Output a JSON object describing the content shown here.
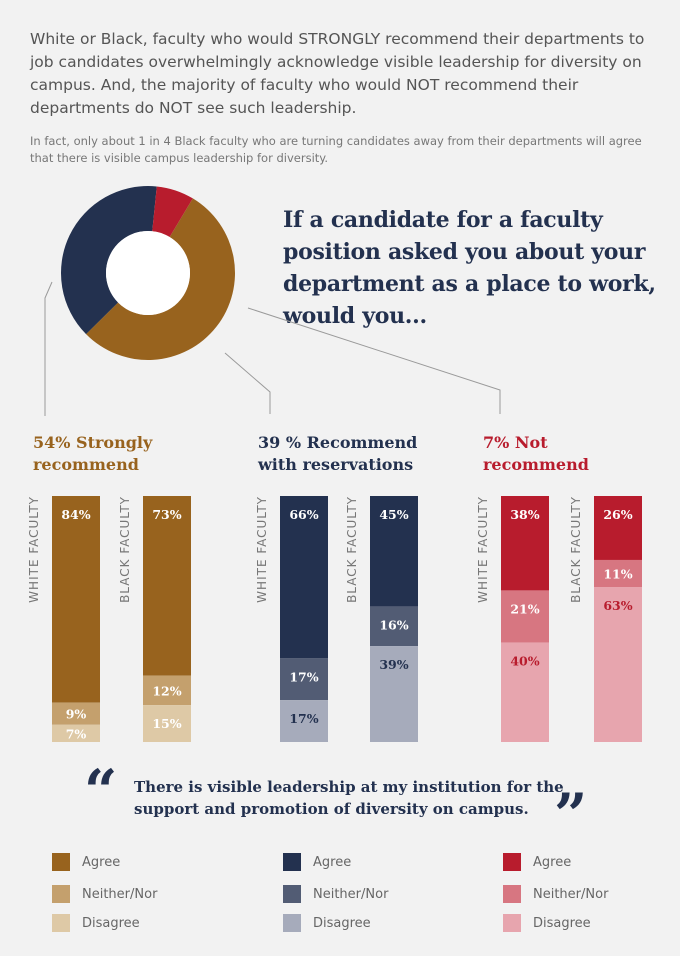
{
  "intro": "White or Black, faculty who would STRONGLY recommend their departments to job candidates overwhelmingly acknowledge visible leadership for diversity on campus. And, the majority of faculty who would NOT recommend their departments do NOT see such leadership.",
  "subtext": "In fact, only about 1 in 4 Black faculty who are turning candidates away from their departments will agree that there is visible campus leadership for diversity.",
  "question": "If a candidate for a faculty position asked you about your department as a place to work, would you...",
  "quote": "There is visible leadership at my institution for the support and promotion of diversity on campus.",
  "quote_open": "“",
  "quote_close": "”",
  "legend": [
    {
      "label": "Agree",
      "color": "#98631e"
    },
    {
      "label": "Neither/Nor",
      "color": "#c4a06d"
    },
    {
      "label": "Disagree",
      "color": "#dec9a6"
    },
    {
      "label": "Agree",
      "color": "#23314f"
    },
    {
      "label": "Neither/Nor",
      "color": "#525c74"
    },
    {
      "label": "Disagree",
      "color": "#a6abbb"
    },
    {
      "label": "Agree",
      "color": "#b81c2d"
    },
    {
      "label": "Neither/Nor",
      "color": "#d77681"
    },
    {
      "label": "Disagree",
      "color": "#e7a5ae"
    }
  ],
  "chart_data": [
    {
      "type": "pie",
      "labels": [
        "Strongly recommend",
        "Recommend with reservations",
        "Not recommend"
      ],
      "values": [
        54,
        39,
        7
      ],
      "colors": [
        "#98631e",
        "#23314f",
        "#b81c2d"
      ]
    },
    {
      "type": "bar",
      "stacked": true,
      "groups": [
        {
          "title": [
            "54% Strongly",
            "recommend"
          ],
          "color": "#98631e"
        },
        {
          "title": [
            "39 % Recommend",
            "with reservations"
          ],
          "color": "#23314f"
        },
        {
          "title": [
            "7% Not",
            "recommend"
          ],
          "color": "#b81c2d"
        }
      ],
      "categories": [
        "WHITE FACULTY",
        "BLACK FACULTY"
      ],
      "series_labels": [
        "Agree",
        "Neither/Nor",
        "Disagree"
      ],
      "bars": [
        {
          "group": 0,
          "category": "WHITE FACULTY",
          "values": [
            84,
            9,
            7
          ],
          "labels": [
            "84%",
            "9%",
            "7%"
          ],
          "colors": [
            "#98631e",
            "#c4a06d",
            "#dec9a6"
          ]
        },
        {
          "group": 0,
          "category": "BLACK FACULTY",
          "values": [
            73,
            12,
            15
          ],
          "labels": [
            "73%",
            "12%",
            "15%"
          ],
          "colors": [
            "#98631e",
            "#c4a06d",
            "#dec9a6"
          ]
        },
        {
          "group": 1,
          "category": "WHITE FACULTY",
          "values": [
            66,
            17,
            17
          ],
          "labels": [
            "66%",
            "17%",
            "17%"
          ],
          "colors": [
            "#23314f",
            "#525c74",
            "#a6abbb"
          ]
        },
        {
          "group": 1,
          "category": "BLACK FACULTY",
          "values": [
            45,
            16,
            39
          ],
          "labels": [
            "45%",
            "16%",
            "39%"
          ],
          "colors": [
            "#23314f",
            "#525c74",
            "#a6abbb"
          ]
        },
        {
          "group": 2,
          "category": "WHITE FACULTY",
          "values": [
            38,
            21,
            40
          ],
          "labels": [
            "38%",
            "21%",
            "40%"
          ],
          "colors": [
            "#b81c2d",
            "#d77681",
            "#e7a5ae"
          ]
        },
        {
          "group": 2,
          "category": "BLACK FACULTY",
          "values": [
            26,
            11,
            63
          ],
          "labels": [
            "26%",
            "11%",
            "63%"
          ],
          "colors": [
            "#b81c2d",
            "#d77681",
            "#e7a5ae"
          ]
        }
      ],
      "label_colors": [
        "#ffffff",
        "#ffffff",
        "#ffffff",
        "#ffffff",
        "#ffffff",
        "#23314f",
        "#ffffff",
        "#ffffff",
        "#b81c2d"
      ]
    }
  ]
}
